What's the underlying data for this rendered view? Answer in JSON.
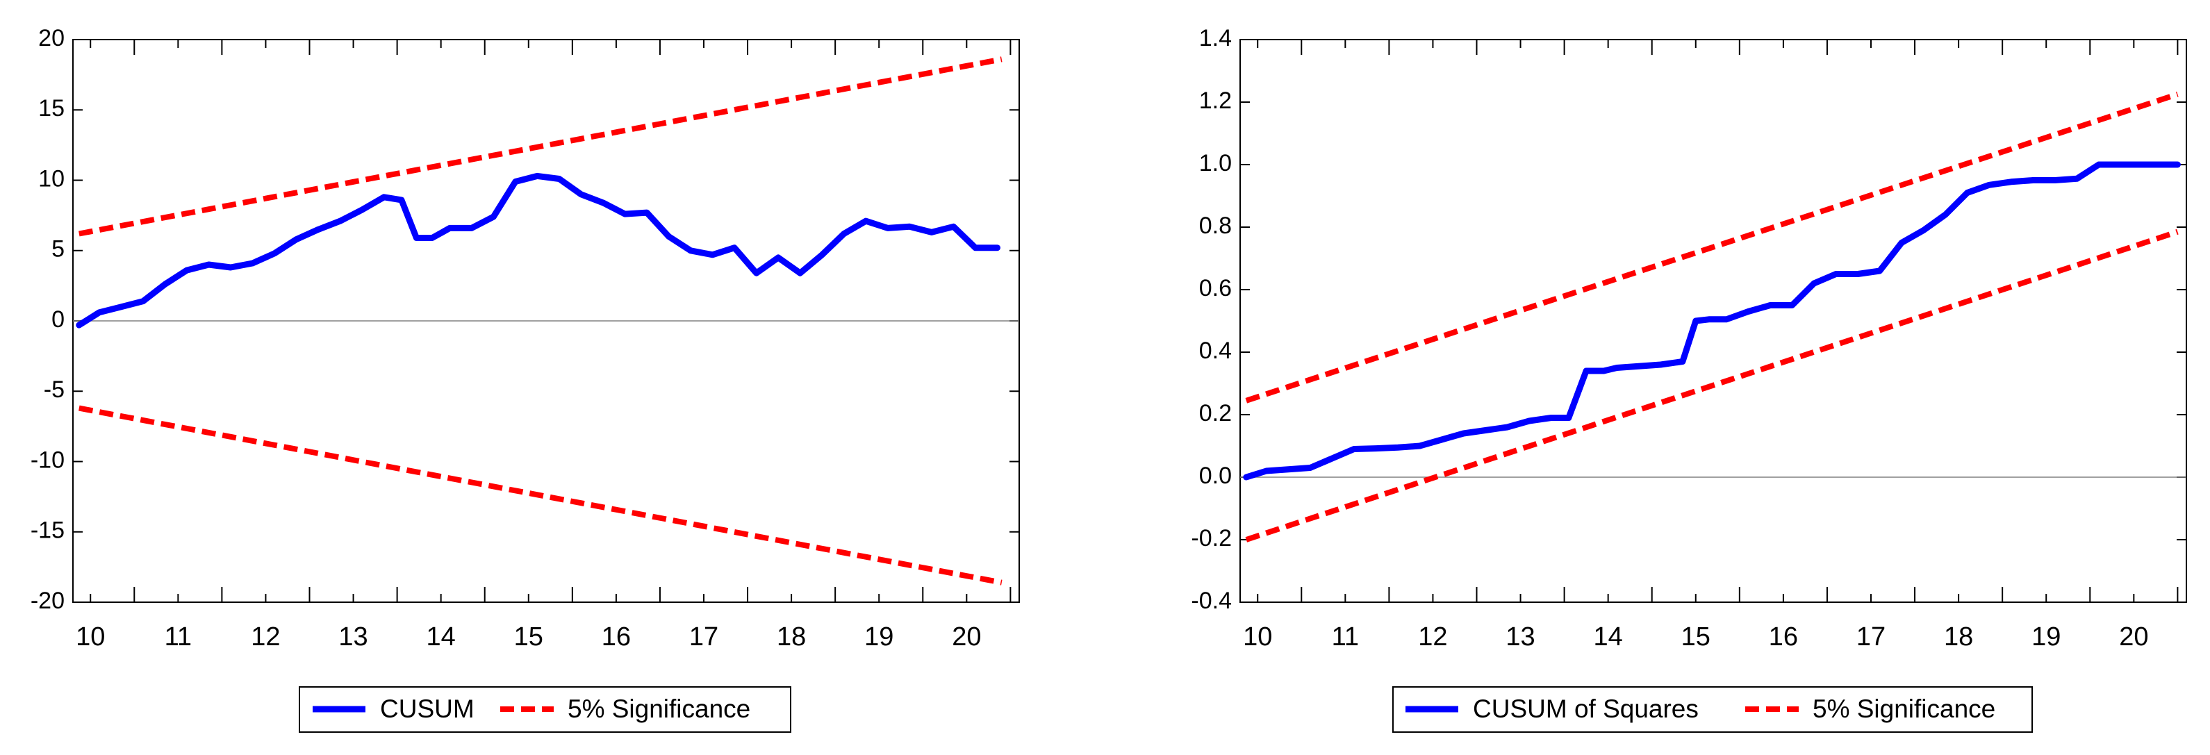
{
  "colors": {
    "series": "#0000ff",
    "bounds": "#ff0000",
    "zero_line": "#808080",
    "axis": "#000000"
  },
  "chart_data": [
    {
      "type": "line",
      "name": "cusum",
      "title": "",
      "xlabel": "",
      "ylabel": "",
      "xlim": [
        9.8,
        20.6
      ],
      "ylim": [
        -20,
        20
      ],
      "y_ticks": [
        20,
        15,
        10,
        5,
        0,
        -5,
        -10,
        -15,
        -20
      ],
      "y_tick_labels": [
        "20",
        "15",
        "10",
        "5",
        "0",
        "-5",
        "-10",
        "-15",
        "-20"
      ],
      "x_ticks": [
        10,
        11,
        12,
        13,
        14,
        15,
        16,
        17,
        18,
        19,
        20
      ],
      "x_tick_labels": [
        "10",
        "11",
        "12",
        "13",
        "14",
        "15",
        "16",
        "17",
        "18",
        "19",
        "20"
      ],
      "minor_x_ticks": [
        10.5,
        11.5,
        12.5,
        13.5,
        14.5,
        15.5,
        16.5,
        17.5,
        18.5,
        19.5,
        20.5
      ],
      "zero_line": true,
      "series": [
        {
          "name": "CUSUM",
          "style": "solid",
          "x": [
            9.87,
            10.1,
            10.35,
            10.6,
            10.85,
            11.1,
            11.35,
            11.6,
            11.85,
            12.1,
            12.35,
            12.6,
            12.85,
            13.1,
            13.35,
            13.55,
            13.72,
            13.9,
            14.1,
            14.35,
            14.6,
            14.85,
            15.1,
            15.35,
            15.6,
            15.85,
            16.1,
            16.35,
            16.6,
            16.85,
            17.1,
            17.35,
            17.6,
            17.85,
            18.1,
            18.35,
            18.6,
            18.85,
            19.1,
            19.35,
            19.6,
            19.85,
            20.1,
            20.35
          ],
          "y": [
            -0.3,
            0.6,
            1.0,
            1.4,
            2.6,
            3.6,
            4.0,
            3.8,
            4.1,
            4.8,
            5.8,
            6.5,
            7.1,
            7.9,
            8.8,
            8.6,
            5.9,
            5.9,
            6.6,
            6.6,
            7.4,
            9.9,
            10.3,
            10.1,
            9.0,
            8.4,
            7.6,
            7.7,
            6.0,
            5.0,
            4.7,
            5.2,
            3.4,
            4.5,
            3.4,
            4.7,
            6.2,
            7.1,
            6.6,
            6.7,
            6.3,
            6.7,
            5.2,
            5.2
          ]
        },
        {
          "name": "5% Significance",
          "style": "dashed",
          "x": [
            9.87,
            20.4
          ],
          "y": [
            6.2,
            18.6
          ]
        },
        {
          "name": "5% Significance lower",
          "style": "dashed",
          "x": [
            9.87,
            20.4
          ],
          "y": [
            -6.2,
            -18.6
          ]
        }
      ],
      "legend": {
        "placement": "bottom-center",
        "entries": [
          {
            "label": "CUSUM",
            "style": "solid"
          },
          {
            "label": "5% Significance",
            "style": "dashed"
          }
        ]
      }
    },
    {
      "type": "line",
      "name": "cusum-squares",
      "title": "",
      "xlabel": "",
      "ylabel": "",
      "xlim": [
        9.8,
        20.6
      ],
      "ylim": [
        -0.4,
        1.4
      ],
      "y_ticks": [
        1.4,
        1.2,
        1.0,
        0.8,
        0.6,
        0.4,
        0.2,
        0.0,
        -0.2,
        -0.4
      ],
      "y_tick_labels": [
        "1.4",
        "1.2",
        "1.0",
        "0.8",
        "0.6",
        "0.4",
        "0.2",
        "0.0",
        "-0.2",
        "-0.4"
      ],
      "x_ticks": [
        10,
        11,
        12,
        13,
        14,
        15,
        16,
        17,
        18,
        19,
        20
      ],
      "x_tick_labels": [
        "10",
        "11",
        "12",
        "13",
        "14",
        "15",
        "16",
        "17",
        "18",
        "19",
        "20"
      ],
      "minor_x_ticks": [
        10.5,
        11.5,
        12.5,
        13.5,
        14.5,
        15.5,
        16.5,
        17.5,
        18.5,
        19.5,
        20.5
      ],
      "zero_line": true,
      "series": [
        {
          "name": "CUSUM of Squares",
          "style": "solid",
          "x": [
            9.87,
            10.1,
            10.35,
            10.6,
            10.85,
            11.1,
            11.35,
            11.6,
            11.85,
            12.1,
            12.35,
            12.6,
            12.85,
            13.1,
            13.35,
            13.55,
            13.75,
            13.95,
            14.1,
            14.35,
            14.6,
            14.85,
            15.0,
            15.15,
            15.35,
            15.6,
            15.85,
            16.1,
            16.35,
            16.6,
            16.85,
            17.1,
            17.35,
            17.6,
            17.85,
            18.1,
            18.35,
            18.6,
            18.85,
            19.1,
            19.35,
            19.6,
            19.85,
            20.1,
            20.35,
            20.5
          ],
          "y": [
            0.0,
            0.02,
            0.025,
            0.03,
            0.06,
            0.09,
            0.092,
            0.095,
            0.1,
            0.12,
            0.14,
            0.15,
            0.16,
            0.18,
            0.19,
            0.19,
            0.34,
            0.34,
            0.35,
            0.355,
            0.36,
            0.37,
            0.5,
            0.505,
            0.505,
            0.53,
            0.55,
            0.55,
            0.62,
            0.65,
            0.65,
            0.66,
            0.75,
            0.79,
            0.84,
            0.91,
            0.935,
            0.945,
            0.95,
            0.95,
            0.955,
            1.0,
            1.0,
            1.0,
            1.0,
            1.0
          ]
        },
        {
          "name": "5% Significance",
          "style": "dashed",
          "x": [
            9.87,
            20.5
          ],
          "y": [
            0.245,
            1.225
          ]
        },
        {
          "name": "5% Significance lower",
          "style": "dashed",
          "x": [
            9.87,
            20.5
          ],
          "y": [
            -0.2,
            0.785
          ]
        }
      ],
      "legend": {
        "placement": "bottom-center",
        "entries": [
          {
            "label": "CUSUM of Squares",
            "style": "solid"
          },
          {
            "label": "5% Significance",
            "style": "dashed"
          }
        ]
      }
    }
  ]
}
